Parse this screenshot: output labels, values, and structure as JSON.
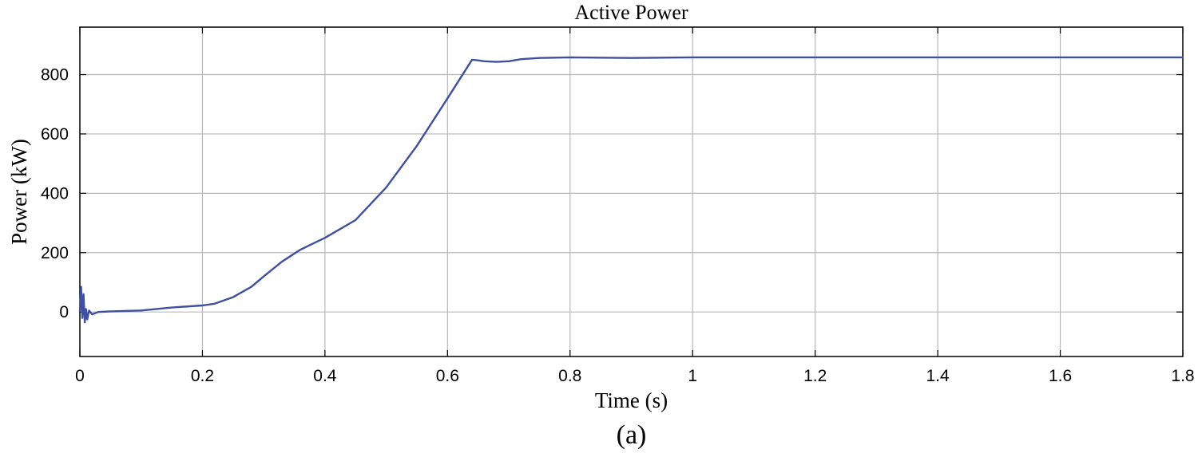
{
  "chart_data": {
    "type": "line",
    "title": "Active Power",
    "xlabel": "Time (s)",
    "ylabel": "Power (kW)",
    "caption": "(a)",
    "xlim": [
      0,
      1.8
    ],
    "ylim": [
      -150,
      960
    ],
    "xticks": [
      0,
      0.2,
      0.4,
      0.6,
      0.8,
      1,
      1.2,
      1.4,
      1.6,
      1.8
    ],
    "xtick_labels": [
      "0",
      "0.2",
      "0.4",
      "0.6",
      "0.8",
      "1",
      "1.2",
      "1.4",
      "1.6",
      "1.8"
    ],
    "yticks": [
      0,
      200,
      400,
      600,
      800
    ],
    "ytick_labels": [
      "0",
      "200",
      "400",
      "600",
      "800"
    ],
    "grid": true,
    "series": [
      {
        "color": "#4050a0",
        "x": [
          0,
          0.002,
          0.004,
          0.006,
          0.008,
          0.01,
          0.012,
          0.015,
          0.02,
          0.03,
          0.05,
          0.1,
          0.15,
          0.2,
          0.22,
          0.25,
          0.28,
          0.3,
          0.33,
          0.36,
          0.4,
          0.45,
          0.5,
          0.55,
          0.6,
          0.64,
          0.65,
          0.66,
          0.68,
          0.7,
          0.72,
          0.75,
          0.8,
          0.9,
          1.0,
          1.2,
          1.4,
          1.6,
          1.8
        ],
        "y": [
          0,
          85,
          -20,
          60,
          -35,
          10,
          -25,
          5,
          -8,
          0,
          2,
          5,
          15,
          22,
          28,
          50,
          85,
          120,
          170,
          210,
          250,
          310,
          420,
          560,
          720,
          850,
          848,
          845,
          843,
          845,
          852,
          856,
          858,
          856,
          858,
          858,
          858,
          858,
          858
        ]
      }
    ]
  }
}
